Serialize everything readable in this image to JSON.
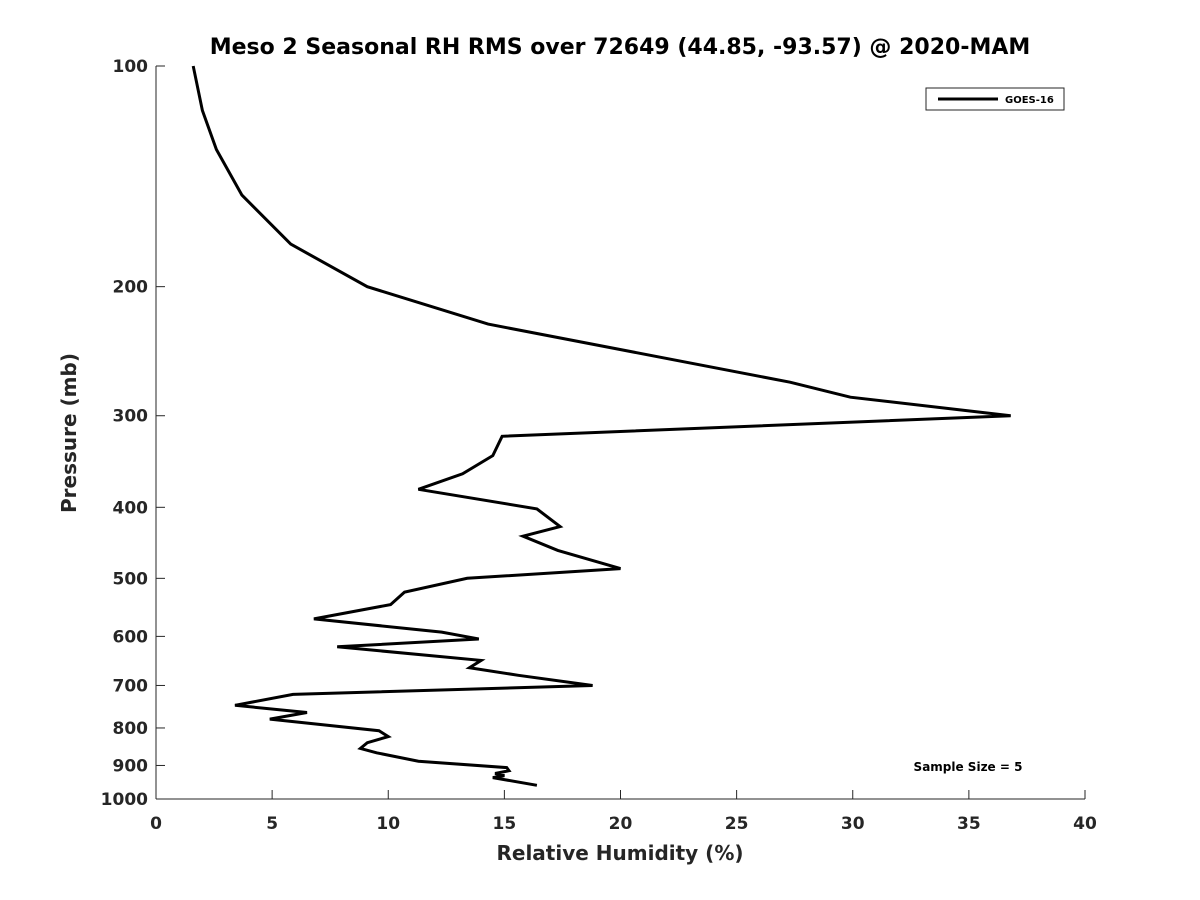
{
  "chart_data": {
    "type": "line",
    "title": "Meso 2 Seasonal RH RMS over 72649 (44.85, -93.57) @ 2020-MAM",
    "xlabel": "Relative Humidity (%)",
    "ylabel": "Pressure (mb)",
    "xlim": [
      0,
      40
    ],
    "ylim": [
      100,
      1000
    ],
    "yscale": "log",
    "y_reversed": true,
    "grid": false,
    "legend_position": "top-right",
    "x_ticks": [
      "0",
      "5",
      "10",
      "15",
      "20",
      "25",
      "30",
      "35",
      "40"
    ],
    "y_ticks": [
      "100",
      "200",
      "300",
      "400",
      "500",
      "600",
      "700",
      "800",
      "900",
      "1000"
    ],
    "series": [
      {
        "name": "GOES-16",
        "color": "#000000",
        "x": [
          1.6,
          2.0,
          2.6,
          3.7,
          5.8,
          9.1,
          14.3,
          27.3,
          29.9,
          36.8,
          14.9,
          14.5,
          13.2,
          11.3,
          16.4,
          17.4,
          15.8,
          17.3,
          20.0,
          13.4,
          10.7,
          10.1,
          6.8,
          12.3,
          13.9,
          7.8,
          14.0,
          13.5,
          15.6,
          18.8,
          5.9,
          3.4,
          6.5,
          4.9,
          9.6,
          10.0,
          9.1,
          8.8,
          9.5,
          11.3,
          15.1,
          15.2,
          14.6,
          15.0,
          14.5,
          16.4
        ],
        "y": [
          100,
          115,
          130,
          150,
          175,
          200,
          225,
          270,
          283,
          300,
          320,
          340,
          360,
          378,
          402,
          425,
          438,
          458,
          485,
          500,
          522,
          543,
          568,
          592,
          605,
          620,
          647,
          662,
          678,
          700,
          720,
          745,
          762,
          778,
          807,
          822,
          838,
          853,
          865,
          888,
          906,
          915,
          923,
          929,
          935,
          958
        ]
      }
    ],
    "annotations": [
      "Sample Size = 5"
    ]
  }
}
